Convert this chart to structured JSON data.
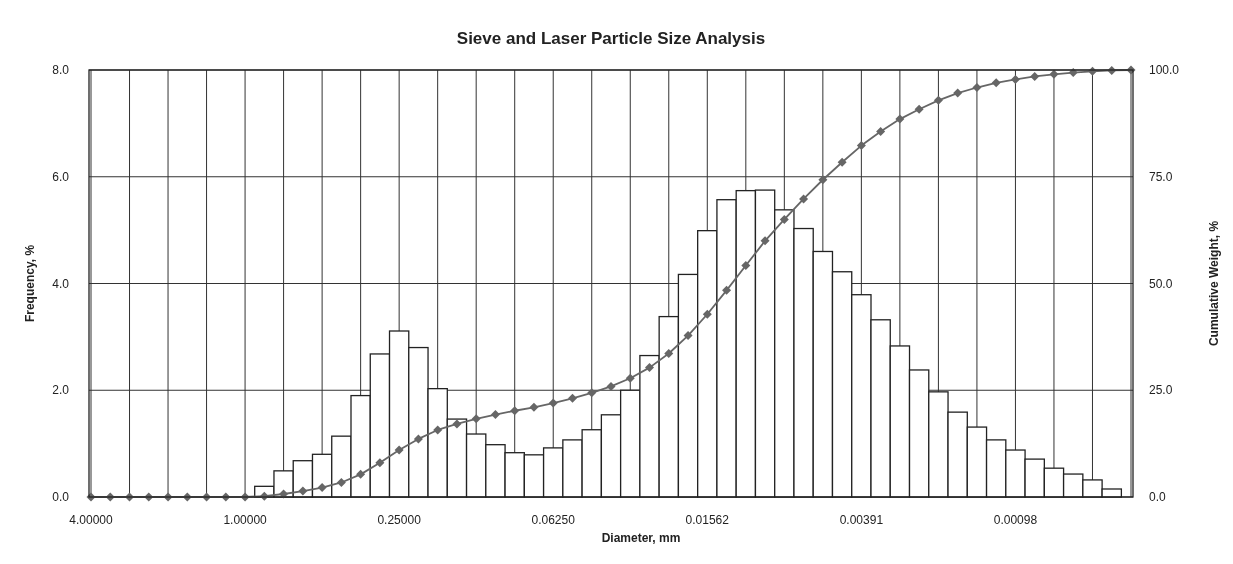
{
  "chart_data": {
    "type": "bar",
    "title": "Sieve and Laser Particle Size Analysis",
    "xlabel": "Diameter, mm",
    "ylabel": "Frequency, %",
    "y2label": "Cumulative Weight, %",
    "categories": [
      "4.00000",
      null,
      null,
      null,
      null,
      null,
      null,
      null,
      "1.00000",
      null,
      null,
      null,
      null,
      null,
      null,
      null,
      "0.25000",
      null,
      null,
      null,
      null,
      null,
      null,
      null,
      "0.06250",
      null,
      null,
      null,
      null,
      null,
      null,
      null,
      "0.01562",
      null,
      null,
      null,
      null,
      null,
      null,
      null,
      "0.00391",
      null,
      null,
      null,
      null,
      null,
      null,
      null,
      "0.00098",
      null,
      null,
      null,
      null,
      null,
      null
    ],
    "series": [
      {
        "type": "bar",
        "color": "#ffffff",
        "values": [
          0,
          0,
          0,
          0,
          0,
          0,
          0,
          0,
          0,
          0.2,
          0.49,
          0.68,
          0.8,
          1.14,
          1.9,
          2.68,
          3.11,
          2.8,
          2.03,
          1.46,
          1.18,
          0.98,
          0.83,
          0.79,
          0.92,
          1.07,
          1.26,
          1.54,
          2.0,
          2.65,
          3.38,
          4.17,
          4.99,
          5.57,
          5.74,
          5.75,
          5.38,
          5.03,
          4.6,
          4.22,
          3.79,
          3.32,
          2.83,
          2.38,
          1.97,
          1.59,
          1.31,
          1.07,
          0.88,
          0.71,
          0.54,
          0.43,
          0.32,
          0.15,
          null
        ]
      },
      {
        "type": "line",
        "axis": "y2",
        "color": "#666666",
        "marker": "diamond",
        "values": [
          0,
          0,
          0,
          0,
          0,
          0,
          0,
          0,
          0,
          0.2,
          0.7,
          1.4,
          2.2,
          3.4,
          5.3,
          8.0,
          11.0,
          13.6,
          15.7,
          17.1,
          18.3,
          19.3,
          20.2,
          21.0,
          22.0,
          23.1,
          24.4,
          25.9,
          27.8,
          30.3,
          33.6,
          37.8,
          42.8,
          48.4,
          54.2,
          60.0,
          65.0,
          69.8,
          74.3,
          78.4,
          82.3,
          85.6,
          88.5,
          90.8,
          92.9,
          94.6,
          95.9,
          97.0,
          97.8,
          98.5,
          99.0,
          99.4,
          99.7,
          99.9,
          100.0
        ]
      }
    ],
    "ylim": [
      0,
      8
    ],
    "yticks": [
      {
        "value": 0,
        "label": "0.0"
      },
      {
        "value": 2,
        "label": "2.0"
      },
      {
        "value": 4,
        "label": "4.0"
      },
      {
        "value": 6,
        "label": "6.0"
      },
      {
        "value": 8,
        "label": "8.0"
      }
    ],
    "y2lim": [
      0,
      100
    ],
    "y2ticks": [
      {
        "value": 0,
        "label": "0.0"
      },
      {
        "value": 25,
        "label": "25.0"
      },
      {
        "value": 50,
        "label": "50.0"
      },
      {
        "value": 75,
        "label": "75.0"
      },
      {
        "value": 100,
        "label": "100.0"
      }
    ],
    "grid": true
  }
}
